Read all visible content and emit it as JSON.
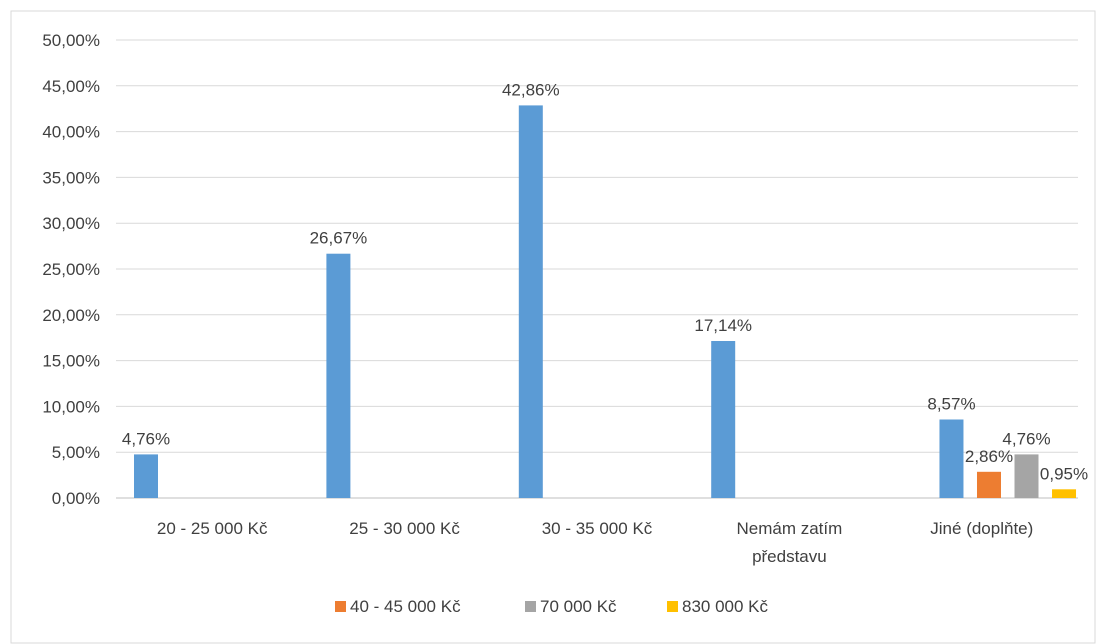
{
  "chart_data": {
    "type": "bar",
    "title": "",
    "xlabel": "",
    "ylabel": "",
    "ylim": [
      0,
      50
    ],
    "y_ticks": [
      "0,00%",
      "5,00%",
      "10,00%",
      "15,00%",
      "20,00%",
      "25,00%",
      "30,00%",
      "35,00%",
      "40,00%",
      "45,00%",
      "50,00%"
    ],
    "grid": true,
    "legend_position": "bottom",
    "categories": [
      [
        "20 - 25 000 Kč"
      ],
      [
        "25 - 30 000 Kč"
      ],
      [
        "30 - 35 000 Kč"
      ],
      [
        "Nemám zatím",
        "představu"
      ],
      [
        "Jiné (doplňte)"
      ]
    ],
    "series": [
      {
        "color": "#5B9BD5",
        "values": [
          4.76,
          26.67,
          42.86,
          17.14,
          8.57
        ],
        "labels": [
          "4,76%",
          "26,67%",
          "42,86%",
          "17,14%",
          "8,57%"
        ]
      },
      {
        "name": "40 - 45 000 Kč",
        "color": "#ED7D31",
        "values": [
          null,
          null,
          null,
          null,
          2.86
        ],
        "labels": [
          null,
          null,
          null,
          null,
          "2,86%"
        ]
      },
      {
        "name": "70 000 Kč",
        "color": "#A5A5A5",
        "values": [
          null,
          null,
          null,
          null,
          4.76
        ],
        "labels": [
          null,
          null,
          null,
          null,
          "4,76%"
        ]
      },
      {
        "name": "830 000 Kč",
        "color": "#FFC000",
        "values": [
          null,
          null,
          null,
          null,
          0.95
        ],
        "labels": [
          null,
          null,
          null,
          null,
          "0,95%"
        ]
      }
    ],
    "legend": [
      "40 - 45 000 Kč",
      "70 000 Kč",
      "830 000 Kč"
    ]
  }
}
